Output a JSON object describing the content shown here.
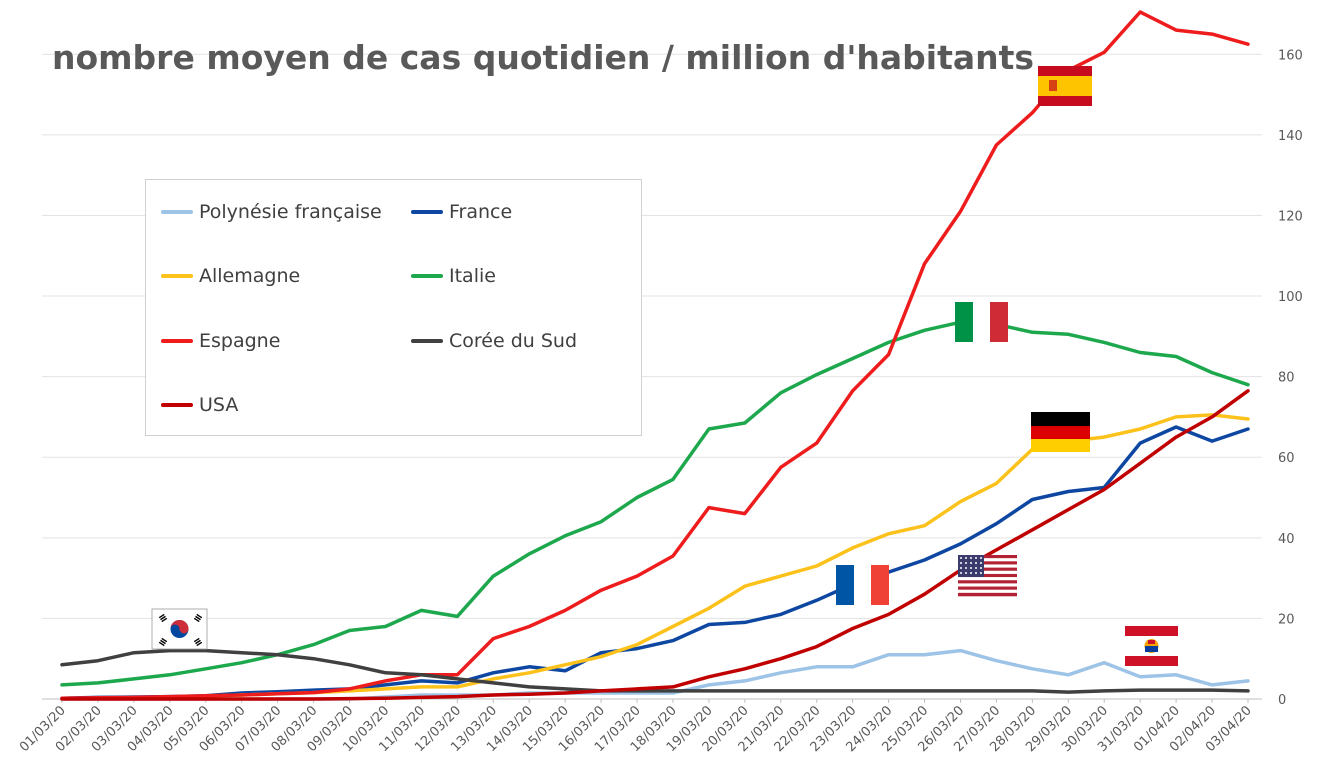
{
  "chart_data": {
    "type": "line",
    "title": "nombre moyen de cas quotidien / million d'habitants",
    "xlabel": "",
    "ylabel": "",
    "y_axis_side": "right",
    "ylim": [
      0,
      170
    ],
    "yticks": [
      0,
      20,
      40,
      60,
      80,
      100,
      120,
      140,
      160
    ],
    "grid": "horizontal",
    "legend_position": "upper-left boxed",
    "categories": [
      "01/03/20",
      "02/03/20",
      "03/03/20",
      "04/03/20",
      "05/03/20",
      "06/03/20",
      "07/03/20",
      "08/03/20",
      "09/03/20",
      "10/03/20",
      "11/03/20",
      "12/03/20",
      "13/03/20",
      "14/03/20",
      "15/03/20",
      "16/03/20",
      "17/03/20",
      "18/03/20",
      "19/03/20",
      "20/03/20",
      "21/03/20",
      "22/03/20",
      "23/03/20",
      "24/03/20",
      "25/03/20",
      "26/03/20",
      "27/03/20",
      "28/03/20",
      "29/03/20",
      "30/03/20",
      "31/03/20",
      "01/04/20",
      "02/04/20",
      "03/04/20"
    ],
    "series": [
      {
        "name": "Polynésie française",
        "color": "#9dc3e6",
        "values": [
          0,
          0,
          0,
          0,
          0,
          0,
          0,
          0,
          0,
          0.5,
          1,
          1,
          1,
          1.5,
          1.5,
          1.5,
          1.5,
          1.5,
          3.5,
          4.5,
          6.5,
          8,
          8,
          11,
          11,
          12,
          9.5,
          7.5,
          6,
          9,
          5.5,
          6,
          3.5,
          4.5
        ]
      },
      {
        "name": "France",
        "color": "#0e47a1",
        "values": [
          0.2,
          0.4,
          0.5,
          0.6,
          0.8,
          1.5,
          1.8,
          2.2,
          2.5,
          3.5,
          4.5,
          4,
          6.5,
          8,
          7,
          11.5,
          12.5,
          14.5,
          18.5,
          19,
          21,
          24.5,
          28.5,
          31.5,
          34.5,
          38.5,
          43.5,
          49.5,
          51.5,
          52.5,
          63.5,
          67.5,
          64,
          67
        ]
      },
      {
        "name": "Allemagne",
        "color": "#fcc21b",
        "values": [
          0.1,
          0.2,
          0.3,
          0.5,
          0.7,
          1,
          1.3,
          1.6,
          2,
          2.5,
          3,
          3,
          5,
          6.5,
          8.5,
          10.5,
          13.5,
          18,
          22.5,
          28,
          30.5,
          33,
          37.5,
          41,
          43,
          49,
          53.5,
          62,
          64,
          65,
          67,
          70,
          70.5,
          69.5
        ]
      },
      {
        "name": "Italie",
        "color": "#1ea84e",
        "values": [
          3.5,
          4,
          5,
          6,
          7.5,
          9,
          11,
          13.5,
          17,
          18,
          22,
          20.5,
          30.5,
          36,
          40.5,
          44,
          50,
          54.5,
          67,
          68.5,
          76,
          80.5,
          84.5,
          88.5,
          91.5,
          93.5,
          93,
          91,
          90.5,
          88.5,
          86,
          85,
          81,
          78
        ]
      },
      {
        "name": "Espagne",
        "color": "#ee1c1c",
        "values": [
          0.2,
          0.3,
          0.4,
          0.6,
          0.8,
          1,
          1.3,
          1.6,
          2.5,
          4.5,
          6,
          6,
          15,
          18,
          22,
          27,
          30.5,
          35.5,
          47.5,
          46,
          57.5,
          63.5,
          76.5,
          85.5,
          108,
          121,
          137.5,
          145.5,
          156,
          160.5,
          170.5,
          166,
          165,
          162.5
        ]
      },
      {
        "name": "Corée du Sud",
        "color": "#404040",
        "values": [
          8.5,
          9.5,
          11.5,
          12,
          12,
          11.5,
          11,
          10,
          8.5,
          6.5,
          6,
          5,
          4,
          3,
          2.5,
          2,
          2,
          2,
          2,
          2,
          2,
          2,
          2,
          2,
          2,
          2,
          2,
          2,
          1.7,
          2,
          2.2,
          2.2,
          2.2,
          2
        ]
      },
      {
        "name": "USA",
        "color": "#c00000",
        "values": [
          0,
          0,
          0,
          0,
          0,
          0,
          0,
          0,
          0.1,
          0.2,
          0.4,
          0.6,
          1,
          1.2,
          1.5,
          2,
          2.5,
          3,
          5.5,
          7.5,
          10,
          13,
          17.5,
          21,
          26,
          32,
          37,
          42,
          47,
          52,
          58.5,
          65,
          70,
          76.5
        ]
      }
    ],
    "flags": [
      {
        "name": "spain-flag",
        "colors": [
          "#c60b1e",
          "#ffc400"
        ]
      },
      {
        "name": "italy-flag",
        "colors": [
          "#009246",
          "#ffffff",
          "#ce2b37"
        ]
      },
      {
        "name": "germany-flag",
        "colors": [
          "#000000",
          "#dd0000",
          "#ffce00"
        ]
      },
      {
        "name": "france-flag",
        "colors": [
          "#0055a4",
          "#ffffff",
          "#ef4135"
        ]
      },
      {
        "name": "usa-flag",
        "colors": [
          "#b22234",
          "#ffffff",
          "#3c3b6e"
        ]
      },
      {
        "name": "south-korea-flag",
        "colors": [
          "#ffffff",
          "#cd2e3a",
          "#0047a0",
          "#000000"
        ]
      },
      {
        "name": "french-polynesia-flag",
        "colors": [
          "#ce1126",
          "#ffffff"
        ]
      }
    ]
  }
}
